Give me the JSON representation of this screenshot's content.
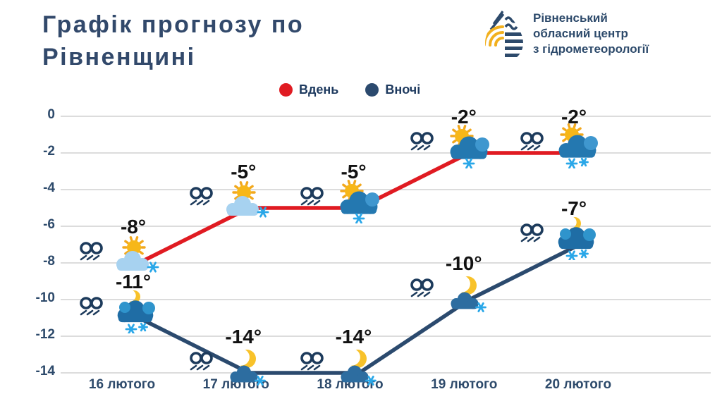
{
  "page": {
    "title": "Графік прогнозу по Рівненщині"
  },
  "logo": {
    "icon": "water-drop-hydromet-logo",
    "lines": [
      "Рівненський",
      "обласний центр",
      "з гідрометеорології"
    ]
  },
  "legend": [
    {
      "label": "Вдень",
      "color": "#e01b22"
    },
    {
      "label": "Вночі",
      "color": "#2b4a6e"
    }
  ],
  "chart_data": {
    "type": "line",
    "title": "Графік прогнозу по Рівненщині",
    "categories": [
      "16 лютого",
      "17 лютого",
      "18 лютого",
      "19 лютого",
      "20 лютого"
    ],
    "series": [
      {
        "name": "Вдень",
        "color": "#e01b22",
        "values": [
          -8,
          -5,
          -5,
          -2,
          -2
        ],
        "point_labels": [
          "-8°",
          "-5°",
          "-5°",
          "-2°",
          "-2°"
        ],
        "icons": [
          "sun-cloud-snow",
          "sun-cloud-snow",
          "sun-behind-cloud-snow",
          "sun-behind-cloud-snow",
          "sun-behind-cloud-2snow"
        ]
      },
      {
        "name": "Вночі",
        "color": "#2b4a6e",
        "values": [
          -11,
          -14,
          -14,
          -10,
          -7
        ],
        "point_labels": [
          "-11°",
          "-14°",
          "-14°",
          "-10°",
          "-7°"
        ],
        "icons": [
          "moon-behind-cloud-2snow",
          "moon-cloud-snow",
          "moon-cloud-snow",
          "moon-cloud-snow",
          "moon-behind-cloud-2snow"
        ]
      }
    ],
    "wind_icon_each_point": "blowing-snow-wind",
    "xlabel": "",
    "ylabel": "",
    "yticks": [
      0,
      -2,
      -4,
      -6,
      -8,
      -10,
      -12,
      -14
    ],
    "ylim": [
      -15,
      0.5
    ],
    "grid": true,
    "legend_position": "top-center",
    "units": "°C"
  }
}
